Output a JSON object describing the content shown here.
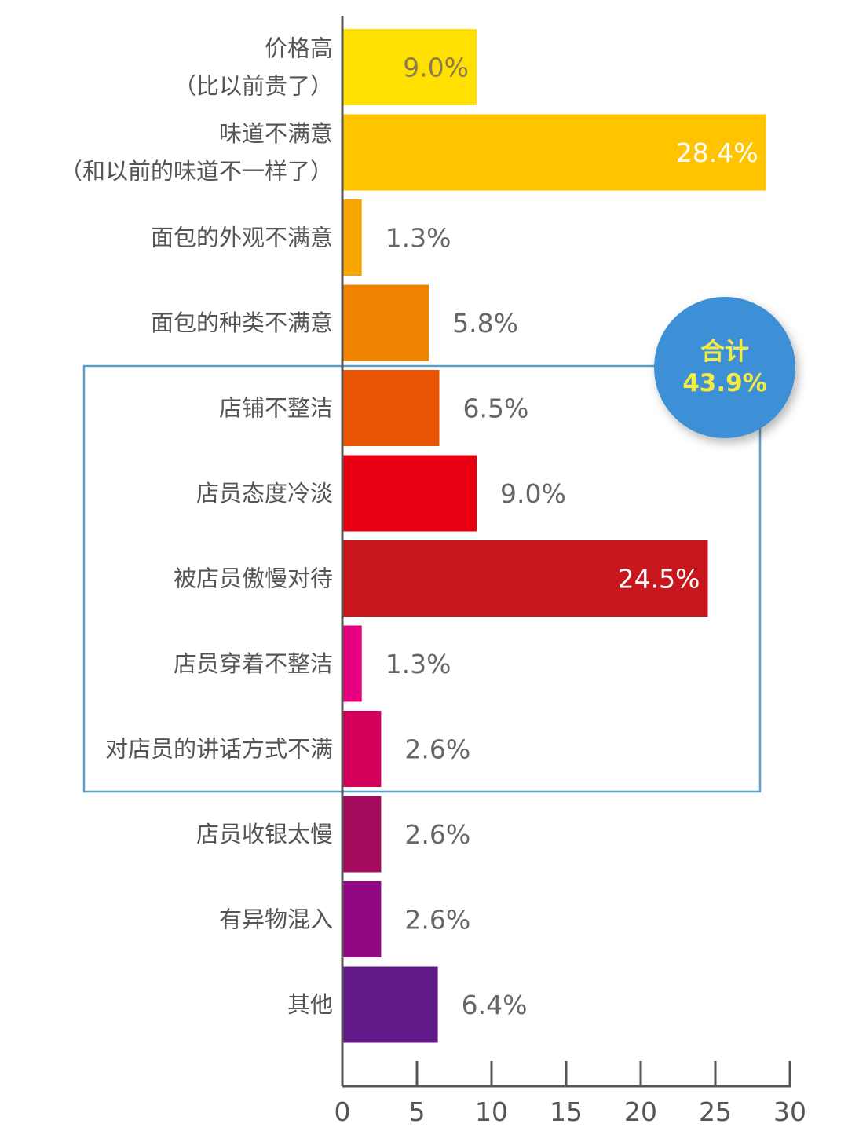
{
  "chart_data": {
    "type": "bar",
    "orientation": "horizontal",
    "title": "",
    "xlabel": "",
    "ylabel": "",
    "xlim": [
      0,
      30
    ],
    "x_ticks": [
      0,
      5,
      10,
      15,
      20,
      25,
      30
    ],
    "grid": false,
    "bars": [
      {
        "label_lines": [
          "价格高",
          "（比以前贵了）"
        ],
        "value": 9.0,
        "value_label": "9.0%",
        "color": "#ffe000",
        "label_inside": true,
        "value_color": "#8a7a55"
      },
      {
        "label_lines": [
          "味道不满意",
          "（和以前的味道不一样了）"
        ],
        "value": 28.4,
        "value_label": "28.4%",
        "color": "#ffc400",
        "label_inside": true,
        "value_color": "#ffffff"
      },
      {
        "label_lines": [
          "面包的外观不满意"
        ],
        "value": 1.3,
        "value_label": "1.3%",
        "color": "#f7a600",
        "label_inside": false,
        "value_color": "#666666"
      },
      {
        "label_lines": [
          "面包的种类不满意"
        ],
        "value": 5.8,
        "value_label": "5.8%",
        "color": "#f08300",
        "label_inside": false,
        "value_color": "#666666"
      },
      {
        "label_lines": [
          "店铺不整洁"
        ],
        "value": 6.5,
        "value_label": "6.5%",
        "color": "#ea5504",
        "label_inside": false,
        "value_color": "#666666"
      },
      {
        "label_lines": [
          "店员态度冷淡"
        ],
        "value": 9.0,
        "value_label": "9.0%",
        "color": "#e60012",
        "label_inside": false,
        "value_color": "#666666"
      },
      {
        "label_lines": [
          "被店员傲慢对待"
        ],
        "value": 24.5,
        "value_label": "24.5%",
        "color": "#c8161d",
        "label_inside": true,
        "value_color": "#ffffff"
      },
      {
        "label_lines": [
          "店员穿着不整洁"
        ],
        "value": 1.3,
        "value_label": "1.3%",
        "color": "#e4007f",
        "label_inside": false,
        "value_color": "#666666"
      },
      {
        "label_lines": [
          "对店员的讲话方式不满"
        ],
        "value": 2.6,
        "value_label": "2.6%",
        "color": "#d2005a",
        "label_inside": false,
        "value_color": "#666666"
      },
      {
        "label_lines": [
          "店员收银太慢"
        ],
        "value": 2.6,
        "value_label": "2.6%",
        "color": "#a40b5d",
        "label_inside": false,
        "value_color": "#666666"
      },
      {
        "label_lines": [
          "有异物混入"
        ],
        "value": 2.6,
        "value_label": "2.6%",
        "color": "#920783",
        "label_inside": false,
        "value_color": "#666666"
      },
      {
        "label_lines": [
          "其他"
        ],
        "value": 6.4,
        "value_label": "6.4%",
        "color": "#601986",
        "label_inside": false,
        "value_color": "#666666"
      }
    ],
    "highlight_group": {
      "bar_range": [
        4,
        8
      ],
      "border_color": "#5b9ec9",
      "badge": {
        "title": "合计",
        "value": "43.9%",
        "fill": "#3c8fd6",
        "text_color": "#f3ea42"
      }
    }
  }
}
